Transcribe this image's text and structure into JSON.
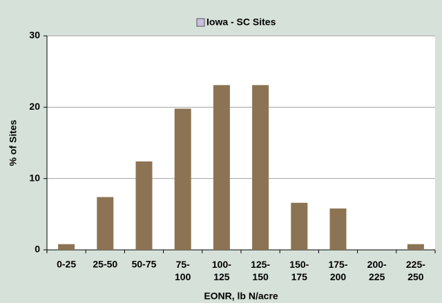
{
  "chart_data": {
    "type": "bar",
    "legend_title": "Iowa - SC Sites",
    "xlabel": "EONR, lb N/acre",
    "ylabel": "% of Sites",
    "categories": [
      "0-25",
      "25-50",
      "50-75",
      "75-100",
      "100-125",
      "125-150",
      "150-175",
      "175-200",
      "200-225",
      "225-250"
    ],
    "series": [
      {
        "name": "Iowa - SC Sites",
        "color": "#8c7353",
        "legend_color": "#cbbfe0",
        "values": [
          0.8,
          7.4,
          12.4,
          19.8,
          23.1,
          23.1,
          6.6,
          5.8,
          0,
          0.8
        ]
      }
    ],
    "ylim": [
      0,
      30
    ],
    "yticks": [
      0,
      10,
      20,
      30
    ],
    "grid": true
  }
}
